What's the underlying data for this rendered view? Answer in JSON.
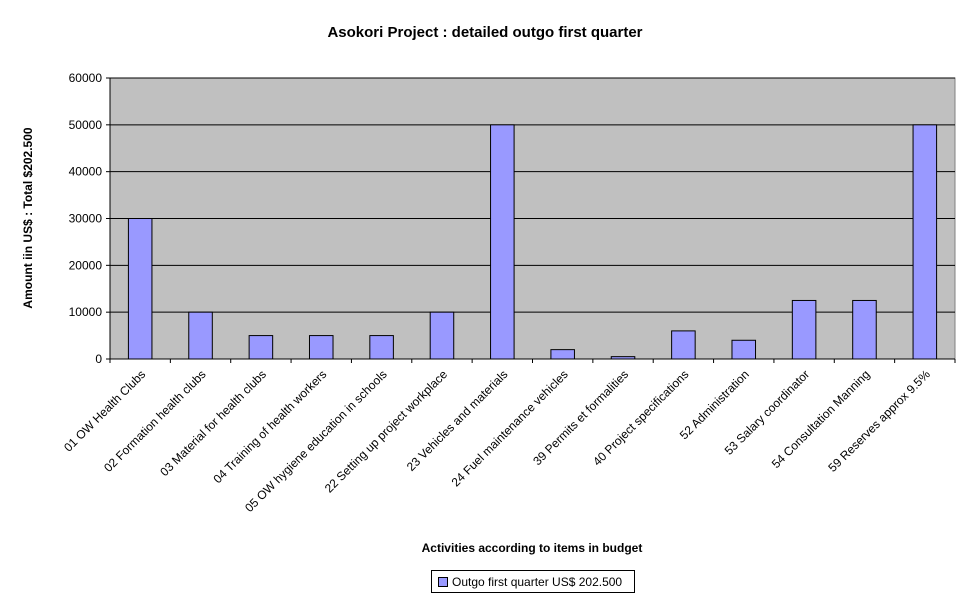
{
  "chart_data": {
    "type": "bar",
    "title": "Asokori Project : detailed outgo first quarter",
    "xlabel": "Activities according to items in budget",
    "ylabel": "Amount iin US$ : Total $202.500",
    "ylim": [
      0,
      60000
    ],
    "yticks": [
      "0",
      "10000",
      "20000",
      "30000",
      "40000",
      "50000",
      "60000"
    ],
    "grid": true,
    "legend_position": "bottom",
    "plot_background": "#c0c0c0",
    "bar_color": "#9999ff",
    "categories": [
      "01 OW Health Clubs",
      "02 Formation health clubs",
      "03 Material for health clubs",
      "04 Training of health workers",
      "05 OW hygiene education in schools",
      "22 Setting up project workplace",
      "23 Vehicles and materials",
      "24 Fuel maintenance vehicles",
      "39 Permits et formalities",
      "40 Project specifications",
      "52 Administration",
      "53 Salary coordinator",
      "54 Consultation Manning",
      "59 Reserves approx 9.5%"
    ],
    "series": [
      {
        "name": "Outgo first quarter US$ 202.500",
        "values": [
          30000,
          10000,
          5000,
          5000,
          5000,
          10000,
          50000,
          2000,
          500,
          6000,
          4000,
          12500,
          12500,
          50000
        ]
      }
    ]
  }
}
